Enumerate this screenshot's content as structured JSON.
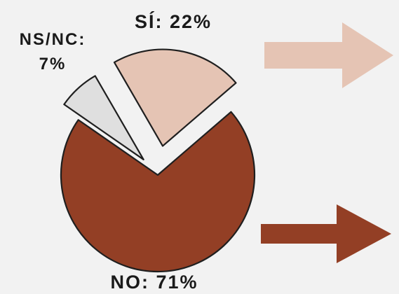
{
  "chart_data": {
    "type": "pie",
    "exploded": true,
    "slices": [
      {
        "label_text": "SÍ: 22%",
        "category": "SÍ",
        "value": 22,
        "color": "#e5c4b4"
      },
      {
        "label_text": "NO: 71%",
        "category": "NO",
        "value": 71,
        "color": "#933f25"
      },
      {
        "label_text_line1": "NS/NC:",
        "label_text_line2": "7%",
        "category": "NS/NC",
        "value": 7,
        "color": "#dfdfdf"
      }
    ],
    "slice_border_color": "#1f1f1f",
    "arrows": [
      {
        "color": "#e5c4b4"
      },
      {
        "color": "#933f25"
      }
    ]
  }
}
